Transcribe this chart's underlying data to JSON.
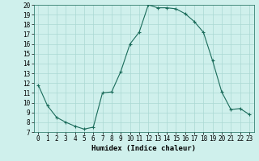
{
  "x": [
    0,
    1,
    2,
    3,
    4,
    5,
    6,
    7,
    8,
    9,
    10,
    11,
    12,
    13,
    14,
    15,
    16,
    17,
    18,
    19,
    20,
    21,
    22,
    23
  ],
  "y": [
    11.8,
    9.7,
    8.5,
    8.0,
    7.6,
    7.3,
    7.5,
    11.0,
    11.1,
    13.2,
    16.0,
    17.2,
    20.0,
    19.7,
    19.7,
    19.6,
    19.1,
    18.3,
    17.2,
    14.3,
    11.1,
    9.3,
    9.4,
    8.8
  ],
  "xlim": [
    -0.5,
    23.5
  ],
  "ylim": [
    7,
    20
  ],
  "yticks": [
    7,
    8,
    9,
    10,
    11,
    12,
    13,
    14,
    15,
    16,
    17,
    18,
    19,
    20
  ],
  "xticks": [
    0,
    1,
    2,
    3,
    4,
    5,
    6,
    7,
    8,
    9,
    10,
    11,
    12,
    13,
    14,
    15,
    16,
    17,
    18,
    19,
    20,
    21,
    22,
    23
  ],
  "xlabel": "Humidex (Indice chaleur)",
  "line_color": "#1a6b5a",
  "marker": "+",
  "marker_size": 3,
  "marker_color": "#1a6b5a",
  "bg_color": "#cff0ec",
  "grid_color": "#aad8d3",
  "label_fontsize": 6.5,
  "tick_fontsize": 5.5
}
